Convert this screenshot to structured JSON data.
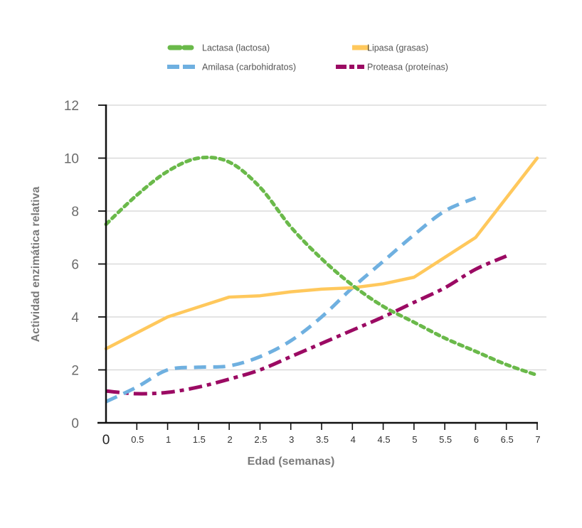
{
  "chart_data": {
    "type": "line",
    "title": "",
    "xlabel": "Edad (semanas)",
    "ylabel": "Actividad enzimática relativa",
    "xlim": [
      0,
      7
    ],
    "ylim": [
      0,
      12
    ],
    "x_ticks": [
      "0",
      "0.5",
      "1",
      "1.5",
      "2",
      "2.5",
      "3",
      "3.5",
      "4",
      "4.5",
      "5",
      "5.5",
      "6",
      "6.5",
      "7"
    ],
    "x_tick_values": [
      0,
      0.5,
      1,
      1.5,
      2,
      2.5,
      3,
      3.5,
      4,
      4.5,
      5,
      5.5,
      6,
      6.5,
      7
    ],
    "y_ticks": [
      "0",
      "2",
      "4",
      "6",
      "8",
      "10",
      "12"
    ],
    "y_tick_values": [
      0,
      2,
      4,
      6,
      8,
      10,
      12
    ],
    "grid": "horizontal",
    "legend_position": "top-center",
    "series": [
      {
        "name": "Lactasa (lactosa)",
        "color": "#6ab94a",
        "style": "dotted",
        "smooth": true,
        "x": [
          0,
          0.5,
          1,
          1.5,
          2,
          2.5,
          3,
          3.5,
          4,
          4.5,
          5,
          5.5,
          6,
          6.5,
          7
        ],
        "y": [
          7.5,
          8.6,
          9.5,
          10.0,
          9.85,
          8.9,
          7.4,
          6.2,
          5.2,
          4.4,
          3.8,
          3.2,
          2.7,
          2.2,
          1.8
        ]
      },
      {
        "name": "Lipasa (grasas)",
        "color": "#ffc85c",
        "style": "solid",
        "smooth": false,
        "x": [
          0,
          1,
          2,
          2.5,
          3,
          3.5,
          4,
          4.5,
          5,
          6,
          7
        ],
        "y": [
          2.8,
          4.0,
          4.75,
          4.8,
          4.95,
          5.05,
          5.1,
          5.25,
          5.5,
          7.0,
          10.0
        ]
      },
      {
        "name": "Amilasa (carbohidratos)",
        "color": "#6fb0e0",
        "style": "dashed",
        "smooth": true,
        "x": [
          0,
          0.5,
          1,
          1.5,
          2,
          2.5,
          3,
          3.5,
          4,
          4.5,
          5,
          5.5,
          6
        ],
        "y": [
          0.8,
          1.35,
          2.0,
          2.1,
          2.15,
          2.5,
          3.1,
          4.0,
          5.1,
          6.1,
          7.1,
          8.0,
          8.5
        ]
      },
      {
        "name": "Proteasa (proteínas)",
        "color": "#9b0a63",
        "style": "dashdot",
        "smooth": true,
        "x": [
          0,
          0.5,
          1,
          1.5,
          2,
          2.5,
          3,
          3.5,
          4,
          4.5,
          5,
          5.5,
          6,
          6.5
        ],
        "y": [
          1.2,
          1.1,
          1.15,
          1.35,
          1.65,
          2.0,
          2.5,
          3.0,
          3.5,
          4.0,
          4.55,
          5.1,
          5.8,
          6.3
        ]
      }
    ],
    "legend_order": [
      0,
      1,
      2,
      3
    ]
  }
}
